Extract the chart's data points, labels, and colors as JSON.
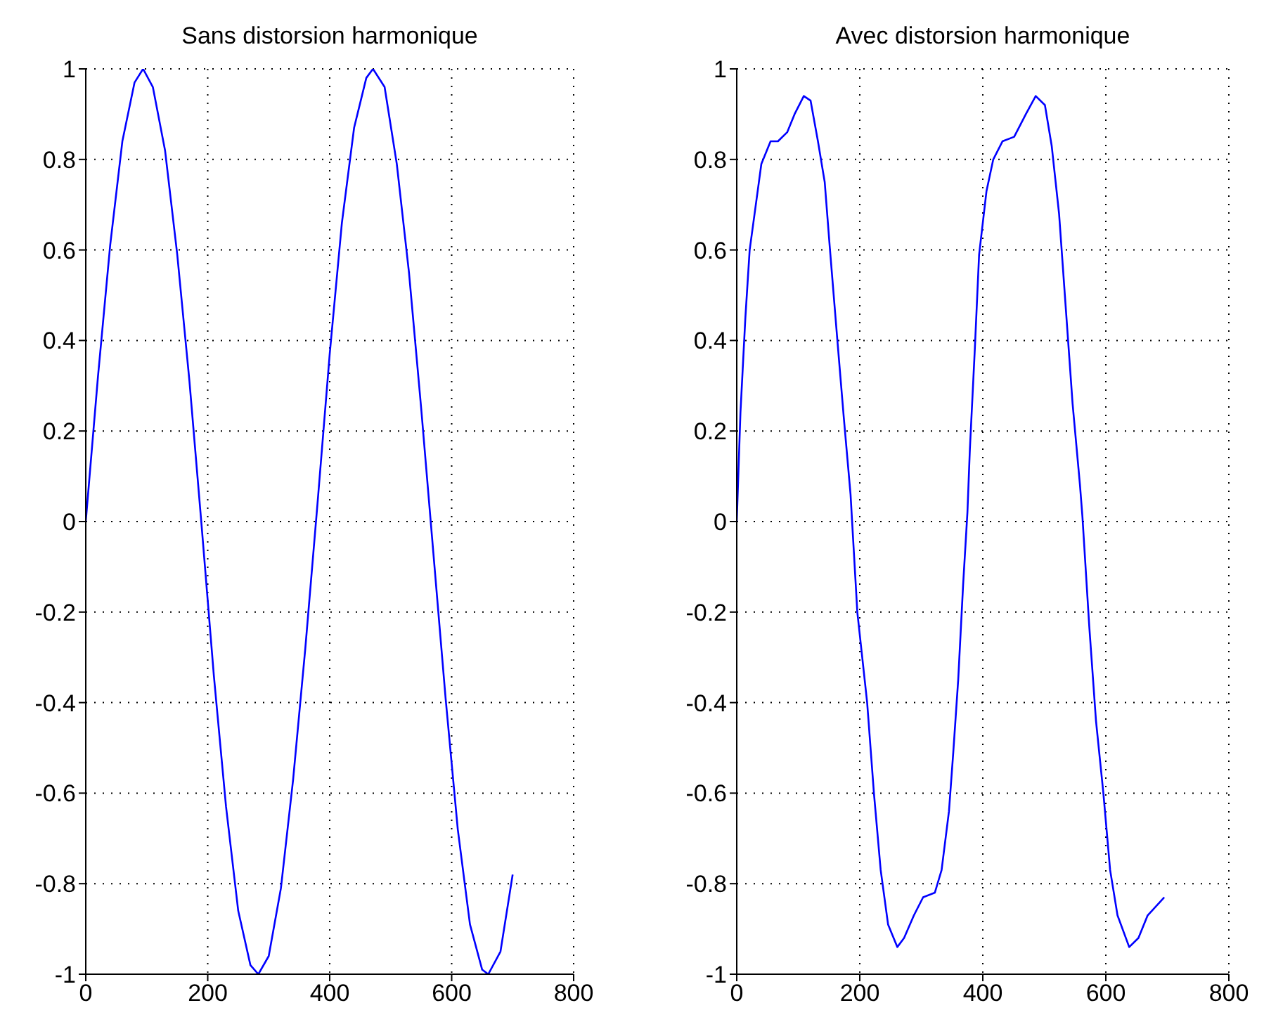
{
  "chart_data": [
    {
      "type": "line",
      "title": "Sans distorsion harmonique",
      "color": "#0000ff",
      "xlim": [
        0,
        800
      ],
      "xticks": [
        0,
        200,
        400,
        600,
        800
      ],
      "ylim": [
        -1,
        1
      ],
      "yticks": [
        -1,
        -0.8,
        -0.6,
        -0.4,
        -0.2,
        0,
        0.2,
        0.4,
        0.6,
        0.8,
        1
      ],
      "grid": true,
      "x": [
        0,
        20,
        40,
        60,
        80,
        94,
        110,
        130,
        150,
        170,
        190,
        210,
        230,
        250,
        270,
        283,
        300,
        320,
        340,
        360,
        380,
        400,
        420,
        440,
        460,
        471,
        490,
        510,
        530,
        550,
        570,
        590,
        610,
        630,
        650,
        660,
        680,
        700
      ],
      "values": [
        0,
        0.32,
        0.61,
        0.84,
        0.97,
        1.0,
        0.96,
        0.82,
        0.59,
        0.31,
        -0.01,
        -0.34,
        -0.63,
        -0.86,
        -0.98,
        -1.0,
        -0.96,
        -0.81,
        -0.57,
        -0.28,
        0.04,
        0.37,
        0.66,
        0.87,
        0.98,
        1.0,
        0.96,
        0.79,
        0.55,
        0.25,
        -0.07,
        -0.39,
        -0.68,
        -0.89,
        -0.99,
        -1.0,
        -0.95,
        -0.78
      ]
    },
    {
      "type": "line",
      "title": "Avec distorsion harmonique",
      "color": "#0000ff",
      "xlim": [
        0,
        800
      ],
      "xticks": [
        0,
        200,
        400,
        600,
        800
      ],
      "ylim": [
        -1,
        1
      ],
      "yticks": [
        -1,
        -0.8,
        -0.6,
        -0.4,
        -0.2,
        0,
        0.2,
        0.4,
        0.6,
        0.8,
        1
      ],
      "grid": true,
      "x": [
        0,
        6,
        14,
        21,
        29,
        40,
        55,
        67,
        82,
        94,
        109,
        120,
        132,
        143,
        151,
        163,
        174,
        185,
        196,
        212,
        223,
        234,
        246,
        261,
        272,
        288,
        303,
        322,
        333,
        345,
        352,
        360,
        368,
        375,
        379,
        387,
        394,
        406,
        417,
        432,
        451,
        470,
        486,
        501,
        512,
        524,
        535,
        546,
        558,
        562,
        573,
        584,
        596,
        607,
        619,
        638,
        653,
        668,
        695
      ],
      "values": [
        0,
        0.24,
        0.45,
        0.6,
        0.68,
        0.79,
        0.84,
        0.84,
        0.86,
        0.9,
        0.94,
        0.93,
        0.84,
        0.75,
        0.61,
        0.41,
        0.23,
        0.06,
        -0.2,
        -0.4,
        -0.6,
        -0.77,
        -0.89,
        -0.94,
        -0.92,
        -0.87,
        -0.83,
        -0.82,
        -0.77,
        -0.64,
        -0.51,
        -0.35,
        -0.14,
        0.02,
        0.16,
        0.38,
        0.59,
        0.73,
        0.8,
        0.84,
        0.85,
        0.9,
        0.94,
        0.92,
        0.83,
        0.68,
        0.47,
        0.26,
        0.08,
        0.01,
        -0.23,
        -0.44,
        -0.6,
        -0.77,
        -0.87,
        -0.94,
        -0.92,
        -0.87,
        -0.83
      ]
    }
  ]
}
